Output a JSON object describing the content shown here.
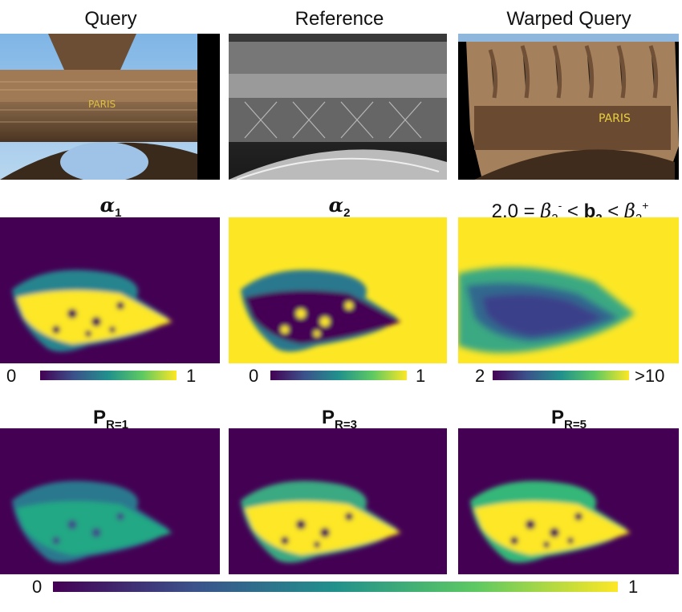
{
  "row1": {
    "titles": [
      "Query",
      "Reference",
      "Warped Query"
    ]
  },
  "row2": {
    "title_left": "α",
    "title_left_sub": "1",
    "title_mid": "α",
    "title_mid_sub": "2",
    "title_right_prefix": "2.0 =",
    "title_right_beta": "β",
    "title_right_beta_sub1": "2",
    "title_right_beta_sup1": "-",
    "title_right_lt1": "<",
    "title_right_b": "b",
    "title_right_b_sub": "2",
    "title_right_lt2": "<",
    "title_right_beta_sub2": "2",
    "title_right_beta_sup2": "+",
    "colorbars": [
      {
        "min": "0",
        "max": "1"
      },
      {
        "min": "0",
        "max": "1"
      },
      {
        "min": "2",
        "max": ">10"
      }
    ]
  },
  "row3": {
    "titles": [
      {
        "main": "P",
        "sub": "R=1"
      },
      {
        "main": "P",
        "sub": "R=3"
      },
      {
        "main": "P",
        "sub": "R=5"
      }
    ],
    "colorbar": {
      "min": "0",
      "max": "1"
    }
  },
  "colors": {
    "viridis_low": "#440154",
    "viridis_mid": "#21918c",
    "viridis_high": "#fde725"
  }
}
